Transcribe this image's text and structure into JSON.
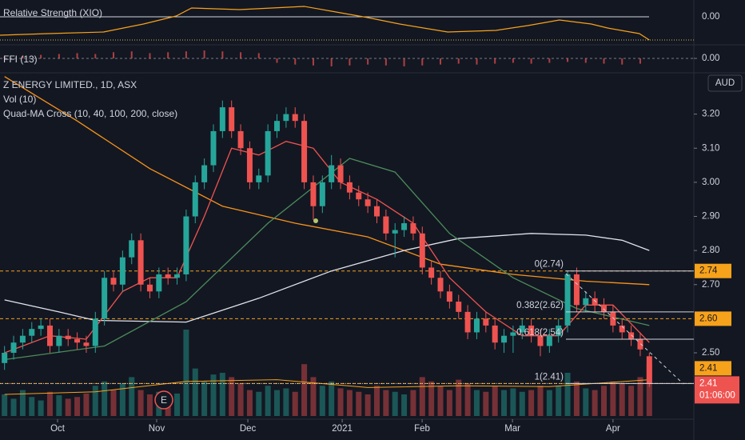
{
  "chart_data": [
    {
      "type": "line",
      "title": "Relative Strength (XIO)",
      "color": "#f7a21b",
      "x": [
        -0.5,
        4.8,
        10.9,
        15.3,
        18.9,
        20.6,
        25.9,
        33,
        36.5,
        40,
        43.5,
        48.8,
        54.1,
        57.6,
        61.1,
        64.6,
        66.4,
        69.9,
        71
      ],
      "values": [
        -1.15,
        -1.05,
        -0.95,
        -0.45,
        0.05,
        0.55,
        0.45,
        0.65,
        0.3,
        -0.05,
        -0.45,
        -0.95,
        -0.85,
        -0.55,
        -0.2,
        -0.45,
        -0.7,
        -1.05,
        -1.45
      ],
      "ylim": [
        -1.55,
        0.95
      ],
      "yticks": [
        {
          "value": 0,
          "label": "0.00"
        }
      ]
    },
    {
      "type": "bar",
      "title": "FFI (13)",
      "color": "#ef5350",
      "x": [
        0,
        2,
        4,
        6,
        8,
        10,
        12,
        14,
        16,
        18,
        20,
        22,
        24,
        26,
        28,
        30,
        32,
        34,
        36,
        38,
        40,
        42,
        44,
        46,
        48,
        50,
        52,
        54,
        56,
        58,
        60,
        62,
        64,
        66,
        68,
        70
      ],
      "values": [
        0.2,
        0.3,
        0.4,
        0.5,
        0.6,
        0.5,
        0.7,
        0.8,
        0.6,
        0.7,
        0.8,
        0.9,
        0.8,
        0.7,
        0.6,
        -0.5,
        -0.7,
        -0.8,
        -0.9,
        -0.8,
        -0.7,
        -0.8,
        -0.9,
        -0.8,
        -0.7,
        -0.6,
        -0.7,
        -0.6,
        -0.5,
        -0.6,
        -0.5,
        -0.4,
        -0.5,
        -0.6,
        -0.7,
        -0.6
      ],
      "ylim": [
        -1,
        1
      ],
      "yticks": [
        {
          "value": 0,
          "label": "0.00"
        }
      ]
    },
    {
      "type": "candlestick",
      "title": "Z ENERGY LIMITED., 1D, ASX",
      "currency": "AUD",
      "indicators": [
        "Vol (10)",
        "Quad-MA Cross (10, 40, 100, 200, close)"
      ],
      "up_color": "#26a69a",
      "down_color": "#ef5350",
      "xlim": [
        -0.5,
        71.5
      ],
      "xticks": [
        {
          "value": 5.84,
          "label": "Oct"
        },
        {
          "value": 16.75,
          "label": "Nov"
        },
        {
          "value": 26.79,
          "label": "Dec"
        },
        {
          "value": 37.18,
          "label": "2021"
        },
        {
          "value": 45.98,
          "label": "Feb"
        },
        {
          "value": 55.93,
          "label": "Mar"
        },
        {
          "value": 67.0,
          "label": "Apr"
        }
      ],
      "ylim": [
        2.31,
        3.3
      ],
      "yticks": [
        {
          "value": 2.5,
          "label": "2.50"
        },
        {
          "value": 2.7,
          "label": "2.70"
        },
        {
          "value": 2.8,
          "label": "2.80"
        },
        {
          "value": 2.9,
          "label": "2.90"
        },
        {
          "value": 3.0,
          "label": "3.00"
        },
        {
          "value": 3.1,
          "label": "3.10"
        },
        {
          "value": 3.2,
          "label": "3.20"
        }
      ],
      "open": [
        2.47,
        2.5,
        2.53,
        2.55,
        2.57,
        2.58,
        2.52,
        2.55,
        2.54,
        2.53,
        2.52,
        2.6,
        2.72,
        2.7,
        2.78,
        2.83,
        2.7,
        2.68,
        2.73,
        2.72,
        2.73,
        2.9,
        3.0,
        3.05,
        3.15,
        3.22,
        3.15,
        3.1,
        3.0,
        3.02,
        3.15,
        3.18,
        3.2,
        3.18,
        3.0,
        2.93,
        3.0,
        3.05,
        3.0,
        2.97,
        2.95,
        2.93,
        2.9,
        2.85,
        2.86,
        2.88,
        2.85,
        2.75,
        2.72,
        2.68,
        2.65,
        2.62,
        2.56,
        2.6,
        2.58,
        2.53,
        2.55,
        2.56,
        2.58,
        2.55,
        2.52,
        2.55,
        2.58,
        2.73,
        2.64,
        2.66,
        2.64,
        2.62,
        2.58,
        2.56,
        2.54,
        2.49
      ],
      "high": [
        2.52,
        2.55,
        2.57,
        2.59,
        2.6,
        2.6,
        2.57,
        2.57,
        2.56,
        2.55,
        2.62,
        2.74,
        2.74,
        2.8,
        2.85,
        2.85,
        2.72,
        2.75,
        2.75,
        2.75,
        2.92,
        3.02,
        3.07,
        3.17,
        3.24,
        3.24,
        3.17,
        3.12,
        3.04,
        3.17,
        3.2,
        3.22,
        3.22,
        3.2,
        3.02,
        3.02,
        3.08,
        3.07,
        3.02,
        2.99,
        2.97,
        2.95,
        2.92,
        2.88,
        2.9,
        2.9,
        2.87,
        2.77,
        2.74,
        2.7,
        2.67,
        2.64,
        2.62,
        2.62,
        2.6,
        2.57,
        2.58,
        2.6,
        2.6,
        2.57,
        2.57,
        2.6,
        2.74,
        2.75,
        2.68,
        2.68,
        2.66,
        2.64,
        2.6,
        2.58,
        2.56,
        2.5
      ],
      "low": [
        2.45,
        2.48,
        2.51,
        2.53,
        2.55,
        2.5,
        2.5,
        2.52,
        2.51,
        2.5,
        2.5,
        2.58,
        2.68,
        2.68,
        2.76,
        2.68,
        2.66,
        2.66,
        2.7,
        2.7,
        2.71,
        2.88,
        2.98,
        3.03,
        3.13,
        3.13,
        3.08,
        2.98,
        2.98,
        3.0,
        3.13,
        3.16,
        3.16,
        2.98,
        2.89,
        2.91,
        2.98,
        2.98,
        2.95,
        2.93,
        2.91,
        2.88,
        2.83,
        2.78,
        2.84,
        2.83,
        2.73,
        2.7,
        2.66,
        2.63,
        2.6,
        2.54,
        2.54,
        2.56,
        2.51,
        2.5,
        2.5,
        2.54,
        2.53,
        2.49,
        2.5,
        2.53,
        2.56,
        2.62,
        2.62,
        2.62,
        2.6,
        2.56,
        2.54,
        2.52,
        2.49,
        2.4
      ],
      "close": [
        2.5,
        2.53,
        2.55,
        2.57,
        2.58,
        2.52,
        2.55,
        2.54,
        2.53,
        2.52,
        2.6,
        2.72,
        2.7,
        2.78,
        2.83,
        2.7,
        2.68,
        2.73,
        2.72,
        2.73,
        2.9,
        3.0,
        3.05,
        3.15,
        3.22,
        3.15,
        3.1,
        3.0,
        3.02,
        3.15,
        3.18,
        3.2,
        3.18,
        3.0,
        2.93,
        3.0,
        3.05,
        3.0,
        2.97,
        2.95,
        2.93,
        2.9,
        2.85,
        2.86,
        2.88,
        2.85,
        2.75,
        2.72,
        2.68,
        2.65,
        2.62,
        2.56,
        2.6,
        2.58,
        2.53,
        2.55,
        2.56,
        2.58,
        2.55,
        2.52,
        2.55,
        2.58,
        2.73,
        2.64,
        2.66,
        2.64,
        2.62,
        2.58,
        2.56,
        2.54,
        2.51,
        2.41
      ],
      "volume": [
        25,
        20,
        30,
        22,
        18,
        28,
        24,
        20,
        22,
        26,
        35,
        40,
        30,
        38,
        45,
        30,
        25,
        28,
        22,
        26,
        100,
        55,
        40,
        48,
        50,
        45,
        38,
        30,
        28,
        35,
        30,
        32,
        28,
        60,
        45,
        35,
        40,
        32,
        30,
        28,
        25,
        35,
        30,
        28,
        25,
        30,
        45,
        40,
        35,
        30,
        42,
        38,
        30,
        28,
        35,
        30,
        32,
        28,
        30,
        35,
        30,
        35,
        50,
        40,
        32,
        30,
        35,
        40,
        38,
        35,
        45,
        60
      ],
      "volume_ma": {
        "color": "#f7a21b",
        "x": [
          0,
          10,
          20,
          30,
          40,
          50,
          60,
          71
        ],
        "values": [
          25,
          28,
          40,
          42,
          33,
          35,
          34,
          42
        ]
      },
      "moving_averages": [
        {
          "color": "#f7931a",
          "x": [
            0,
            8,
            16,
            24,
            32,
            40,
            48,
            56,
            64,
            71
          ],
          "values": [
            3.31,
            3.18,
            3.04,
            2.93,
            2.88,
            2.84,
            2.76,
            2.73,
            2.71,
            2.7
          ]
        },
        {
          "color": "#e0e3eb",
          "x": [
            0,
            6,
            10,
            20,
            28,
            36,
            44,
            50,
            58,
            64,
            68,
            71
          ],
          "values": [
            2.655,
            2.62,
            2.595,
            2.59,
            2.66,
            2.74,
            2.8,
            2.835,
            2.85,
            2.845,
            2.83,
            2.8
          ]
        },
        {
          "color": "#4c8c5a",
          "x": [
            0,
            11,
            20,
            29,
            38,
            43,
            49,
            56,
            63,
            71
          ],
          "values": [
            2.48,
            2.52,
            2.65,
            2.88,
            3.07,
            3.03,
            2.85,
            2.72,
            2.63,
            2.58
          ]
        },
        {
          "color": "#f05350",
          "x": [
            0,
            5,
            9,
            13,
            16,
            19,
            22,
            25,
            28,
            31,
            34,
            37,
            41,
            45,
            49,
            53,
            57,
            61,
            64,
            67,
            71
          ],
          "values": [
            2.5,
            2.55,
            2.54,
            2.68,
            2.72,
            2.72,
            2.9,
            3.1,
            3.08,
            3.12,
            3.1,
            3.0,
            2.95,
            2.88,
            2.72,
            2.62,
            2.55,
            2.55,
            2.64,
            2.64,
            2.53
          ]
        }
      ],
      "fib_levels": [
        {
          "value": 2.74,
          "label": "0(2.74)"
        },
        {
          "value": 2.62,
          "label": "0.382(2.62)"
        },
        {
          "value": 2.54,
          "label": "0.618(2.54)"
        },
        {
          "value": 2.41,
          "label": "1(2.41)"
        }
      ],
      "price_lines": [
        {
          "value": 2.74,
          "label": "2.74",
          "color": "#f7a21b"
        },
        {
          "value": 2.6,
          "label": "2.60",
          "color": "#f7a21b"
        },
        {
          "value": 2.41,
          "label": "2.41",
          "color": "#f7a21b"
        }
      ],
      "last_price": {
        "value": 2.41,
        "label": "2.41",
        "countdown": "01:06:00",
        "color": "#ef5350"
      },
      "event_marker": "E"
    }
  ]
}
